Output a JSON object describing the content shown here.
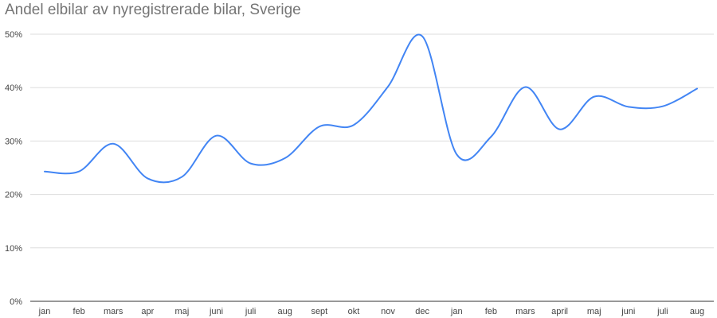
{
  "chart_data": {
    "type": "line",
    "title": "Andel elbilar av nyregistrerade bilar, Sverige",
    "xlabel": "",
    "ylabel": "",
    "categories": [
      "jan",
      "feb",
      "mars",
      "apr",
      "maj",
      "juni",
      "juli",
      "aug",
      "sept",
      "okt",
      "nov",
      "dec",
      "jan",
      "feb",
      "mars",
      "april",
      "maj",
      "juni",
      "juli",
      "aug"
    ],
    "series": [
      {
        "values": [
          24.3,
          24.3,
          29.5,
          23.0,
          23.3,
          31.0,
          25.8,
          26.8,
          32.7,
          33.0,
          40.2,
          49.6,
          27.5,
          30.8,
          40.1,
          32.2,
          38.3,
          36.4,
          36.5,
          39.8
        ],
        "color": "#4285f4"
      }
    ],
    "ylim": [
      0,
      50
    ],
    "yticks": [
      "0%",
      "10%",
      "20%",
      "30%",
      "40%",
      "50%"
    ],
    "ytick_values": [
      0,
      10,
      20,
      30,
      40,
      50
    ],
    "grid": true,
    "line_style": "smooth",
    "colors": {
      "line": "#4285f4",
      "grid": "#dddddd",
      "axis": "#333333",
      "title": "#757575",
      "tick_text": "#444444"
    }
  }
}
